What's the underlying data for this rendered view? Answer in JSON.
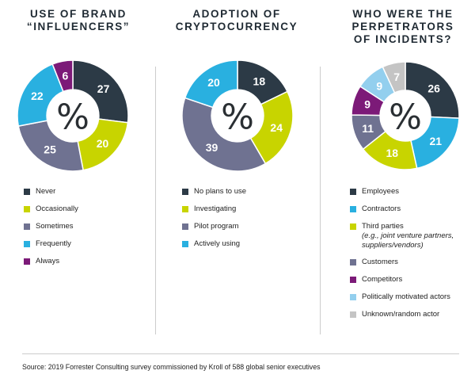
{
  "charts": [
    {
      "title_lines": [
        "USE OF BRAND",
        "“INFLUENCERS”"
      ],
      "center_symbol": "%",
      "legend": [
        {
          "label": "Never",
          "sub": ""
        },
        {
          "label": "Occasionally",
          "sub": ""
        },
        {
          "label": "Sometimes",
          "sub": ""
        },
        {
          "label": "Frequently",
          "sub": ""
        },
        {
          "label": "Always",
          "sub": ""
        }
      ]
    },
    {
      "title_lines": [
        "ADOPTION OF",
        "CRYPTOCURRENCY"
      ],
      "center_symbol": "%",
      "legend": [
        {
          "label": "No plans to use",
          "sub": ""
        },
        {
          "label": "Investigating",
          "sub": ""
        },
        {
          "label": "Pilot program",
          "sub": ""
        },
        {
          "label": "Actively using",
          "sub": ""
        }
      ]
    },
    {
      "title_lines": [
        "WHO WERE THE",
        "PERPETRATORS",
        "OF INCIDENTS?"
      ],
      "center_symbol": "%",
      "legend": [
        {
          "label": "Employees",
          "sub": ""
        },
        {
          "label": "Contractors",
          "sub": ""
        },
        {
          "label": "Third parties",
          "sub": "(e.g., joint venture partners, suppliers/vendors)"
        },
        {
          "label": "Customers",
          "sub": ""
        },
        {
          "label": "Competitors",
          "sub": ""
        },
        {
          "label": "Politically motivated actors",
          "sub": ""
        },
        {
          "label": "Unknown/random actor",
          "sub": ""
        }
      ]
    }
  ],
  "chart_data": [
    {
      "type": "pie",
      "title": "USE OF BRAND “INFLUENCERS”",
      "categories": [
        "Never",
        "Occasionally",
        "Sometimes",
        "Frequently",
        "Always"
      ],
      "values": [
        27,
        20,
        25,
        22,
        6
      ],
      "colors": [
        "#2c3a46",
        "#c8d400",
        "#6f7291",
        "#29b0e0",
        "#7c1a78"
      ],
      "label_colors": [
        "#ffffff",
        "#ffffff",
        "#ffffff",
        "#ffffff",
        "#ffffff"
      ]
    },
    {
      "type": "pie",
      "title": "ADOPTION OF CRYPTOCURRENCY",
      "categories": [
        "No plans to use",
        "Investigating",
        "Pilot program",
        "Actively using"
      ],
      "values": [
        18,
        24,
        39,
        20
      ],
      "colors": [
        "#2c3a46",
        "#c8d400",
        "#6f7291",
        "#29b0e0"
      ],
      "label_colors": [
        "#ffffff",
        "#ffffff",
        "#ffffff",
        "#ffffff"
      ]
    },
    {
      "type": "pie",
      "title": "WHO WERE THE PERPETRATORS OF INCIDENTS?",
      "categories": [
        "Employees",
        "Contractors",
        "Third parties",
        "Customers",
        "Competitors",
        "Politically motivated actors",
        "Unknown/random actor"
      ],
      "values": [
        26,
        21,
        18,
        11,
        9,
        9,
        7
      ],
      "colors": [
        "#2c3a46",
        "#29b0e0",
        "#c8d400",
        "#6f7291",
        "#7c1a78",
        "#93cfee",
        "#c4c4c4"
      ],
      "label_colors": [
        "#ffffff",
        "#ffffff",
        "#ffffff",
        "#ffffff",
        "#ffffff",
        "#ffffff",
        "#ffffff"
      ]
    }
  ],
  "footer": {
    "source": "Source: 2019 Forrester Consulting survey commissioned by Kroll of 588 global senior executives"
  }
}
